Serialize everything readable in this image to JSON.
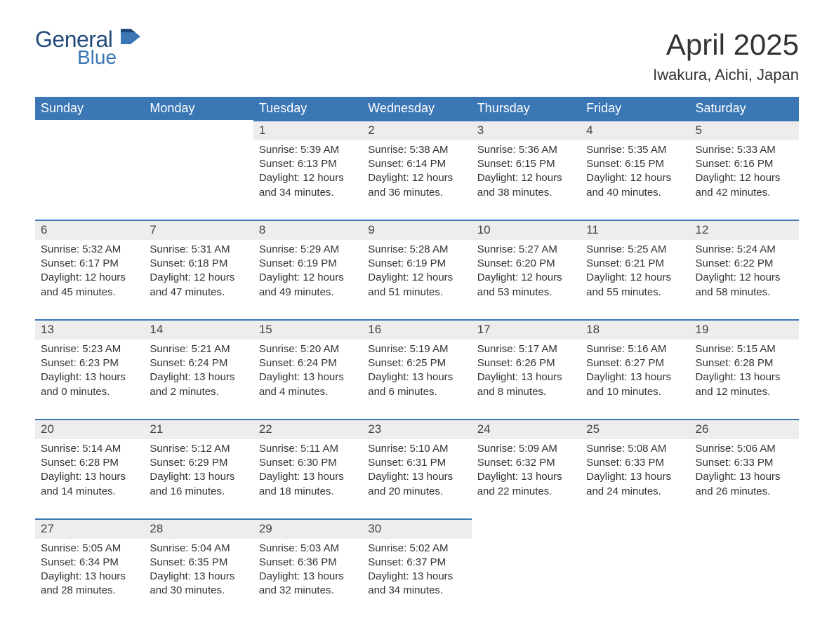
{
  "logo": {
    "line1": "General",
    "line2": "Blue"
  },
  "title": {
    "month": "April 2025",
    "location": "Iwakura, Aichi, Japan"
  },
  "colors": {
    "header_bg": "#3b76b5",
    "header_fg": "#ffffff",
    "daynum_bg": "#ededed",
    "daynum_border": "#3b76b5",
    "text": "#333333",
    "logo_dark": "#214a7a",
    "logo_light": "#3b76b5",
    "background": "#ffffff"
  },
  "weekdays": [
    "Sunday",
    "Monday",
    "Tuesday",
    "Wednesday",
    "Thursday",
    "Friday",
    "Saturday"
  ],
  "labels": {
    "sunrise": "Sunrise:",
    "sunset": "Sunset:",
    "daylight": "Daylight:"
  },
  "weeks": [
    [
      {
        "day": "",
        "empty": true
      },
      {
        "day": "",
        "empty": true
      },
      {
        "day": "1",
        "sunrise": "5:39 AM",
        "sunset": "6:13 PM",
        "daylight": "12 hours and 34 minutes."
      },
      {
        "day": "2",
        "sunrise": "5:38 AM",
        "sunset": "6:14 PM",
        "daylight": "12 hours and 36 minutes."
      },
      {
        "day": "3",
        "sunrise": "5:36 AM",
        "sunset": "6:15 PM",
        "daylight": "12 hours and 38 minutes."
      },
      {
        "day": "4",
        "sunrise": "5:35 AM",
        "sunset": "6:15 PM",
        "daylight": "12 hours and 40 minutes."
      },
      {
        "day": "5",
        "sunrise": "5:33 AM",
        "sunset": "6:16 PM",
        "daylight": "12 hours and 42 minutes."
      }
    ],
    [
      {
        "day": "6",
        "sunrise": "5:32 AM",
        "sunset": "6:17 PM",
        "daylight": "12 hours and 45 minutes."
      },
      {
        "day": "7",
        "sunrise": "5:31 AM",
        "sunset": "6:18 PM",
        "daylight": "12 hours and 47 minutes."
      },
      {
        "day": "8",
        "sunrise": "5:29 AM",
        "sunset": "6:19 PM",
        "daylight": "12 hours and 49 minutes."
      },
      {
        "day": "9",
        "sunrise": "5:28 AM",
        "sunset": "6:19 PM",
        "daylight": "12 hours and 51 minutes."
      },
      {
        "day": "10",
        "sunrise": "5:27 AM",
        "sunset": "6:20 PM",
        "daylight": "12 hours and 53 minutes."
      },
      {
        "day": "11",
        "sunrise": "5:25 AM",
        "sunset": "6:21 PM",
        "daylight": "12 hours and 55 minutes."
      },
      {
        "day": "12",
        "sunrise": "5:24 AM",
        "sunset": "6:22 PM",
        "daylight": "12 hours and 58 minutes."
      }
    ],
    [
      {
        "day": "13",
        "sunrise": "5:23 AM",
        "sunset": "6:23 PM",
        "daylight": "13 hours and 0 minutes."
      },
      {
        "day": "14",
        "sunrise": "5:21 AM",
        "sunset": "6:24 PM",
        "daylight": "13 hours and 2 minutes."
      },
      {
        "day": "15",
        "sunrise": "5:20 AM",
        "sunset": "6:24 PM",
        "daylight": "13 hours and 4 minutes."
      },
      {
        "day": "16",
        "sunrise": "5:19 AM",
        "sunset": "6:25 PM",
        "daylight": "13 hours and 6 minutes."
      },
      {
        "day": "17",
        "sunrise": "5:17 AM",
        "sunset": "6:26 PM",
        "daylight": "13 hours and 8 minutes."
      },
      {
        "day": "18",
        "sunrise": "5:16 AM",
        "sunset": "6:27 PM",
        "daylight": "13 hours and 10 minutes."
      },
      {
        "day": "19",
        "sunrise": "5:15 AM",
        "sunset": "6:28 PM",
        "daylight": "13 hours and 12 minutes."
      }
    ],
    [
      {
        "day": "20",
        "sunrise": "5:14 AM",
        "sunset": "6:28 PM",
        "daylight": "13 hours and 14 minutes."
      },
      {
        "day": "21",
        "sunrise": "5:12 AM",
        "sunset": "6:29 PM",
        "daylight": "13 hours and 16 minutes."
      },
      {
        "day": "22",
        "sunrise": "5:11 AM",
        "sunset": "6:30 PM",
        "daylight": "13 hours and 18 minutes."
      },
      {
        "day": "23",
        "sunrise": "5:10 AM",
        "sunset": "6:31 PM",
        "daylight": "13 hours and 20 minutes."
      },
      {
        "day": "24",
        "sunrise": "5:09 AM",
        "sunset": "6:32 PM",
        "daylight": "13 hours and 22 minutes."
      },
      {
        "day": "25",
        "sunrise": "5:08 AM",
        "sunset": "6:33 PM",
        "daylight": "13 hours and 24 minutes."
      },
      {
        "day": "26",
        "sunrise": "5:06 AM",
        "sunset": "6:33 PM",
        "daylight": "13 hours and 26 minutes."
      }
    ],
    [
      {
        "day": "27",
        "sunrise": "5:05 AM",
        "sunset": "6:34 PM",
        "daylight": "13 hours and 28 minutes."
      },
      {
        "day": "28",
        "sunrise": "5:04 AM",
        "sunset": "6:35 PM",
        "daylight": "13 hours and 30 minutes."
      },
      {
        "day": "29",
        "sunrise": "5:03 AM",
        "sunset": "6:36 PM",
        "daylight": "13 hours and 32 minutes."
      },
      {
        "day": "30",
        "sunrise": "5:02 AM",
        "sunset": "6:37 PM",
        "daylight": "13 hours and 34 minutes."
      },
      {
        "day": "",
        "empty": true
      },
      {
        "day": "",
        "empty": true
      },
      {
        "day": "",
        "empty": true
      }
    ]
  ]
}
